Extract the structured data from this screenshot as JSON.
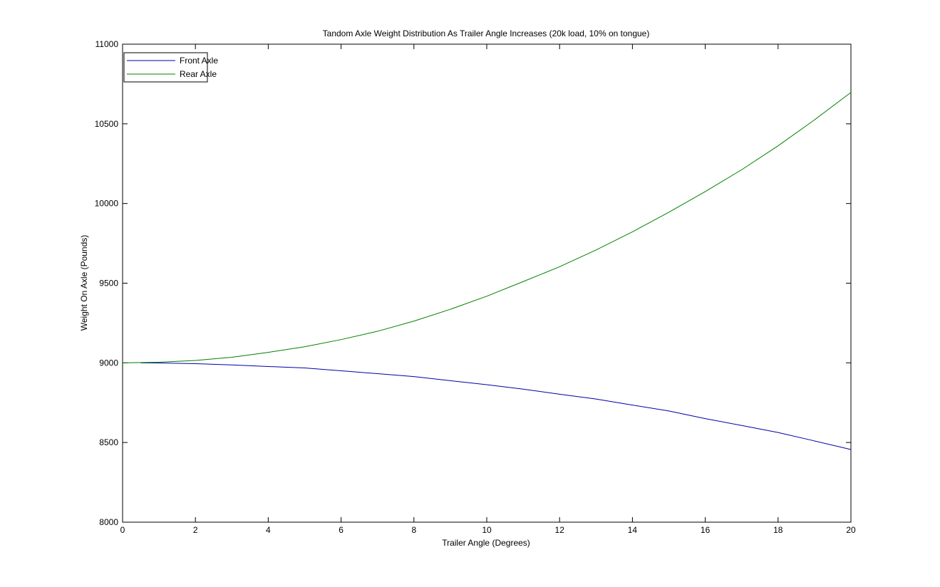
{
  "chart_data": {
    "type": "line",
    "title": "Tandom Axle Weight Distribution As Trailer Angle Increases (20k load, 10% on tongue)",
    "xlabel": "Trailer Angle (Degrees)",
    "ylabel": "Weight On Axle (Pounds)",
    "xlim": [
      0,
      20
    ],
    "ylim": [
      8000,
      11000
    ],
    "xticks": [
      "0",
      "2",
      "4",
      "6",
      "8",
      "10",
      "12",
      "14",
      "16",
      "18",
      "20"
    ],
    "yticks": [
      "8000",
      "8500",
      "9000",
      "9500",
      "10000",
      "10500",
      "11000"
    ],
    "grid": false,
    "legend_position": "top-left",
    "series": [
      {
        "name": "Front Axle",
        "color": "#0000aa",
        "x": [
          0.5,
          1,
          2,
          3,
          4,
          5,
          6,
          7,
          8,
          9,
          10,
          11,
          12,
          13,
          14,
          15,
          16,
          17,
          18,
          19,
          20
        ],
        "y": [
          9000,
          8999,
          8995,
          8987,
          8977,
          8968,
          8950,
          8932,
          8914,
          8888,
          8863,
          8835,
          8803,
          8773,
          8735,
          8698,
          8650,
          8607,
          8563,
          8510,
          8456
        ]
      },
      {
        "name": "Rear Axle",
        "color": "#008000",
        "x": [
          0,
          1,
          2,
          3,
          4,
          5,
          6,
          7,
          8,
          9,
          10,
          11,
          12,
          13,
          14,
          15,
          16,
          17,
          18,
          19,
          20
        ],
        "y": [
          9000,
          9004,
          9015,
          9035,
          9066,
          9101,
          9146,
          9198,
          9262,
          9336,
          9418,
          9510,
          9603,
          9708,
          9822,
          9945,
          10075,
          10212,
          10362,
          10525,
          10697
        ]
      }
    ]
  }
}
